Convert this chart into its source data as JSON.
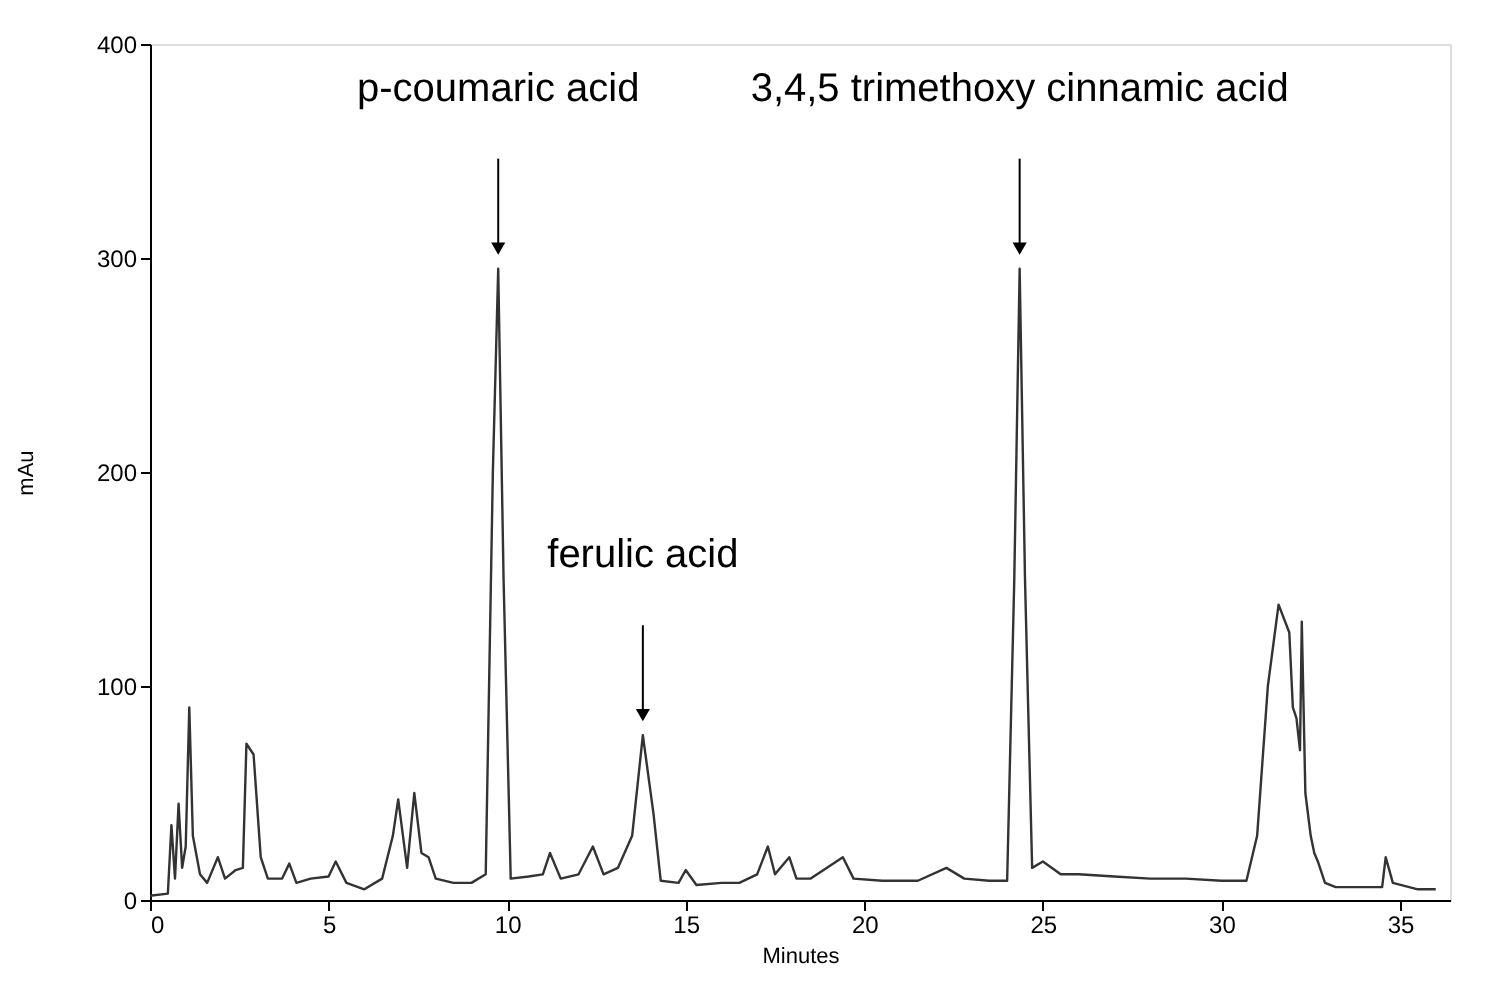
{
  "chart_data": {
    "type": "line",
    "xlabel": "Minutes",
    "ylabel": "mAu",
    "xlim": [
      0,
      36.4
    ],
    "xticks": [
      0,
      5,
      10,
      15,
      20,
      25,
      30,
      35
    ],
    "ylim": [
      0,
      400
    ],
    "yticks": [
      0,
      100,
      200,
      300,
      400
    ],
    "grid": false,
    "marker": "none",
    "line_style": "solid",
    "x": [
      0,
      0.5,
      0.6,
      0.7,
      0.8,
      0.9,
      1.0,
      1.1,
      1.2,
      1.4,
      1.6,
      1.9,
      2.1,
      2.4,
      2.6,
      2.7,
      2.9,
      3.1,
      3.3,
      3.7,
      3.9,
      4.1,
      4.5,
      5.0,
      5.2,
      5.5,
      6.0,
      6.5,
      6.8,
      6.95,
      7.2,
      7.4,
      7.6,
      7.8,
      8.0,
      8.5,
      9.0,
      9.4,
      9.6,
      9.75,
      9.9,
      10.1,
      10.6,
      11.0,
      11.2,
      11.5,
      12.0,
      12.4,
      12.7,
      13.1,
      13.5,
      13.8,
      14.1,
      14.3,
      14.8,
      15.0,
      15.3,
      16.0,
      16.5,
      17.0,
      17.3,
      17.5,
      17.9,
      18.1,
      18.5,
      19.4,
      19.7,
      20.5,
      21.5,
      22.3,
      22.8,
      23.5,
      24.0,
      24.2,
      24.35,
      24.5,
      24.7,
      25.0,
      25.5,
      26.0,
      27.0,
      28,
      29,
      30,
      30.7,
      31.0,
      31.3,
      31.6,
      31.9,
      32.0,
      32.1,
      32.2,
      32.25,
      32.35,
      32.5,
      32.6,
      32.7,
      32.9,
      33.2,
      34.5,
      34.6,
      34.8,
      35.5,
      36.0
    ],
    "series": [
      {
        "color": "#333333",
        "values": [
          2,
          3,
          35,
          10,
          45,
          15,
          25,
          90,
          30,
          12,
          8,
          20,
          10,
          14,
          15,
          73,
          68,
          20,
          10,
          10,
          17,
          8,
          10,
          11,
          18,
          8,
          5,
          10,
          30,
          47,
          15,
          50,
          22,
          20,
          10,
          8,
          8,
          12,
          200,
          295,
          150,
          10,
          11,
          12,
          22,
          10,
          12,
          25,
          12,
          15,
          30,
          77,
          40,
          9,
          8,
          14,
          7,
          8,
          8,
          12,
          25,
          12,
          20,
          10,
          10,
          20,
          10,
          9,
          9,
          15,
          10,
          9,
          9,
          150,
          295,
          150,
          15,
          18,
          12,
          12,
          11,
          10,
          10,
          9,
          9,
          30,
          100,
          138,
          125,
          90,
          85,
          70,
          130,
          50,
          30,
          22,
          18,
          8,
          6,
          6,
          20,
          8,
          5,
          5
        ]
      }
    ],
    "annotations": [
      {
        "text": "p-coumaric acid",
        "x": 9.75,
        "y": 295
      },
      {
        "text": "ferulic acid",
        "x": 13.8,
        "y": 77
      },
      {
        "text": "3,4,5 trimethoxy cinnamic acid",
        "x": 24.35,
        "y": 295
      }
    ]
  }
}
